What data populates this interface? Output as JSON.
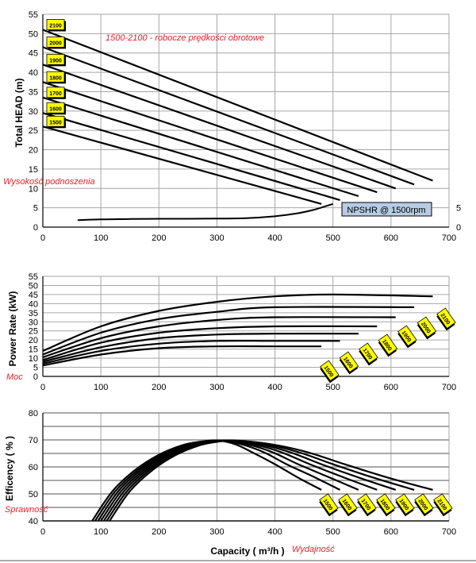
{
  "colors": {
    "curve": "#000000",
    "grid": "#a6a6a6",
    "gridMajor": "#8c8c8c",
    "badge": "#ffff00",
    "badgeBorder": "#000000",
    "redText": "#e8202a",
    "npshrBox": "#b8cce4"
  },
  "speeds": [
    "1500",
    "1600",
    "1700",
    "1800",
    "1900",
    "2000",
    "2100"
  ],
  "chart_data": [
    {
      "type": "line",
      "title": "",
      "ylabel": "Total HEAD (m)",
      "ylabel_local": "Wysokość podnoszenia",
      "note": "1500-2100 - robocze prędkości obrotowe",
      "xlim": [
        0,
        700
      ],
      "ylim": [
        0,
        55
      ],
      "xticks": [
        "0",
        "100",
        "200",
        "300",
        "400",
        "500",
        "600",
        "700"
      ],
      "yticks": [
        "0",
        "5",
        "10",
        "15",
        "20",
        "25",
        "30",
        "35",
        "40",
        "45",
        "50",
        "55"
      ],
      "series": [
        {
          "name": "1500",
          "x": [
            0,
            480
          ],
          "y": [
            26,
            6
          ]
        },
        {
          "name": "1600",
          "x": [
            0,
            512
          ],
          "y": [
            29.5,
            7
          ]
        },
        {
          "name": "1700",
          "x": [
            0,
            544
          ],
          "y": [
            33.5,
            8
          ]
        },
        {
          "name": "1800",
          "x": [
            0,
            576
          ],
          "y": [
            37.5,
            9
          ]
        },
        {
          "name": "1900",
          "x": [
            0,
            608
          ],
          "y": [
            42,
            10
          ]
        },
        {
          "name": "2000",
          "x": [
            0,
            640
          ],
          "y": [
            46.5,
            11
          ]
        },
        {
          "name": "2100",
          "x": [
            0,
            672
          ],
          "y": [
            51,
            12
          ]
        }
      ],
      "npshr": {
        "label": "NPSHR @ 1500rpm",
        "x": [
          60,
          100,
          150,
          200,
          250,
          300,
          350,
          400,
          440,
          470,
          500
        ],
        "y": [
          1.8,
          2.0,
          2.1,
          2.15,
          2.15,
          2.2,
          2.3,
          2.8,
          3.6,
          4.6,
          6.0
        ],
        "right_axis_ticks": [
          "0",
          "5"
        ]
      }
    },
    {
      "type": "line",
      "ylabel": "Power Rate (kW)",
      "ylabel_local": "Moc",
      "xlim": [
        0,
        700
      ],
      "ylim": [
        0,
        55
      ],
      "xticks": [
        "0",
        "100",
        "200",
        "300",
        "400",
        "500",
        "600",
        "700"
      ],
      "yticks": [
        "0",
        "5",
        "10",
        "15",
        "20",
        "25",
        "30",
        "35",
        "40",
        "45",
        "50",
        "55"
      ],
      "series": [
        {
          "name": "1500",
          "x": [
            0,
            100,
            200,
            300,
            400,
            480
          ],
          "y": [
            6,
            12,
            15.5,
            16.5,
            16.5,
            16.5
          ]
        },
        {
          "name": "1600",
          "x": [
            0,
            100,
            200,
            300,
            400,
            512
          ],
          "y": [
            7,
            14,
            18,
            19.5,
            19.5,
            19.5
          ]
        },
        {
          "name": "1700",
          "x": [
            0,
            100,
            200,
            300,
            400,
            544
          ],
          "y": [
            8,
            16,
            21,
            23,
            23.5,
            23.5
          ]
        },
        {
          "name": "1800",
          "x": [
            0,
            100,
            200,
            300,
            400,
            576
          ],
          "y": [
            9,
            18.5,
            24,
            26.5,
            27.5,
            27.5
          ]
        },
        {
          "name": "1900",
          "x": [
            0,
            100,
            200,
            300,
            400,
            608
          ],
          "y": [
            10.5,
            21,
            27.5,
            31,
            32.5,
            32.5
          ]
        },
        {
          "name": "2000",
          "x": [
            0,
            100,
            200,
            300,
            400,
            640
          ],
          "y": [
            12,
            24,
            31.5,
            35.5,
            38,
            38
          ]
        },
        {
          "name": "2100",
          "x": [
            0,
            100,
            200,
            300,
            400,
            500,
            672
          ],
          "y": [
            14,
            27.5,
            36,
            41,
            44,
            45,
            44
          ]
        }
      ]
    },
    {
      "type": "line",
      "ylabel": "Efficency ( % )",
      "ylabel_local": "Sprawność",
      "xlabel": "Capacity ( m³/h )",
      "xlabel_local": "Wydajność",
      "xlim": [
        0,
        700
      ],
      "ylim": [
        40,
        80
      ],
      "xticks": [
        "0",
        "100",
        "200",
        "300",
        "400",
        "500",
        "600",
        "700"
      ],
      "yticks": [
        "40",
        "50",
        "60",
        "70",
        "80"
      ],
      "series": [
        {
          "name": "1500",
          "x": [
            85,
            120,
            160,
            200,
            240,
            270,
            300,
            330,
            360,
            400,
            440,
            480
          ],
          "y": [
            40,
            51,
            59,
            64.5,
            68,
            69.3,
            69.8,
            68.5,
            65.5,
            61,
            56,
            51.5
          ]
        },
        {
          "name": "1600",
          "x": [
            90,
            125,
            165,
            205,
            245,
            275,
            305,
            340,
            380,
            420,
            470,
            512
          ],
          "y": [
            40,
            51,
            59,
            64.5,
            68,
            69.3,
            69.8,
            68.5,
            65.5,
            61,
            56,
            51.5
          ]
        },
        {
          "name": "1700",
          "x": [
            95,
            130,
            170,
            210,
            250,
            280,
            310,
            350,
            395,
            440,
            495,
            544
          ],
          "y": [
            40,
            51,
            59,
            64.5,
            68,
            69.3,
            69.8,
            68.5,
            65.5,
            61,
            56,
            51.5
          ]
        },
        {
          "name": "1800",
          "x": [
            100,
            135,
            175,
            215,
            255,
            285,
            315,
            360,
            410,
            460,
            520,
            576
          ],
          "y": [
            40,
            51,
            59,
            64.5,
            68,
            69.3,
            69.8,
            68.5,
            65.5,
            61,
            56,
            51.5
          ]
        },
        {
          "name": "1900",
          "x": [
            105,
            140,
            180,
            220,
            260,
            290,
            320,
            370,
            425,
            480,
            545,
            608
          ],
          "y": [
            40,
            51,
            59,
            64.5,
            68,
            69.3,
            69.8,
            68.5,
            65.5,
            61,
            56,
            51.5
          ]
        },
        {
          "name": "2000",
          "x": [
            110,
            145,
            185,
            225,
            265,
            295,
            325,
            380,
            440,
            500,
            570,
            640
          ],
          "y": [
            40,
            51,
            59,
            64.5,
            68,
            69.3,
            69.8,
            68.5,
            65.5,
            61,
            56,
            51.5
          ]
        },
        {
          "name": "2100",
          "x": [
            115,
            150,
            190,
            230,
            270,
            300,
            330,
            390,
            455,
            520,
            595,
            672
          ],
          "y": [
            40,
            51,
            59,
            64.5,
            68,
            69.3,
            69.8,
            68.5,
            65.5,
            61,
            56,
            51.5
          ]
        }
      ]
    }
  ]
}
